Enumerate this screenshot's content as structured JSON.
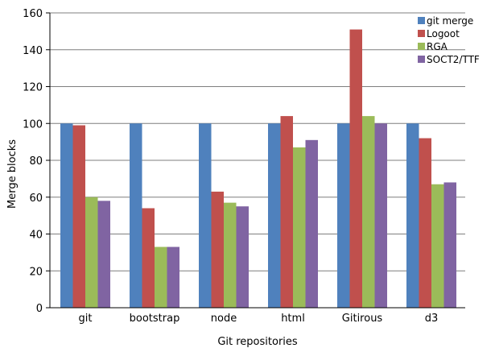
{
  "chart_data": {
    "type": "bar",
    "title": "",
    "xlabel": "Git repositories",
    "ylabel": "Merge blocks",
    "categories": [
      "git",
      "bootstrap",
      "node",
      "html",
      "Gitirous",
      "d3"
    ],
    "ylim": [
      0,
      160
    ],
    "yticks": [
      0,
      20,
      40,
      60,
      80,
      100,
      120,
      140,
      160
    ],
    "grid": "horizontal",
    "legend_position": "top-right",
    "series": [
      {
        "name": "git merge",
        "color": "#4f81bd",
        "values": [
          100,
          100,
          100,
          100,
          100,
          100
        ]
      },
      {
        "name": "Logoot",
        "color": "#c0504d",
        "values": [
          99,
          54,
          63,
          104,
          151,
          92
        ]
      },
      {
        "name": "RGA",
        "color": "#9bbb59",
        "values": [
          60,
          33,
          57,
          87,
          104,
          67
        ]
      },
      {
        "name": "SOCT2/TTF",
        "color": "#8064a2",
        "values": [
          58,
          33,
          55,
          91,
          100,
          68
        ]
      }
    ]
  }
}
